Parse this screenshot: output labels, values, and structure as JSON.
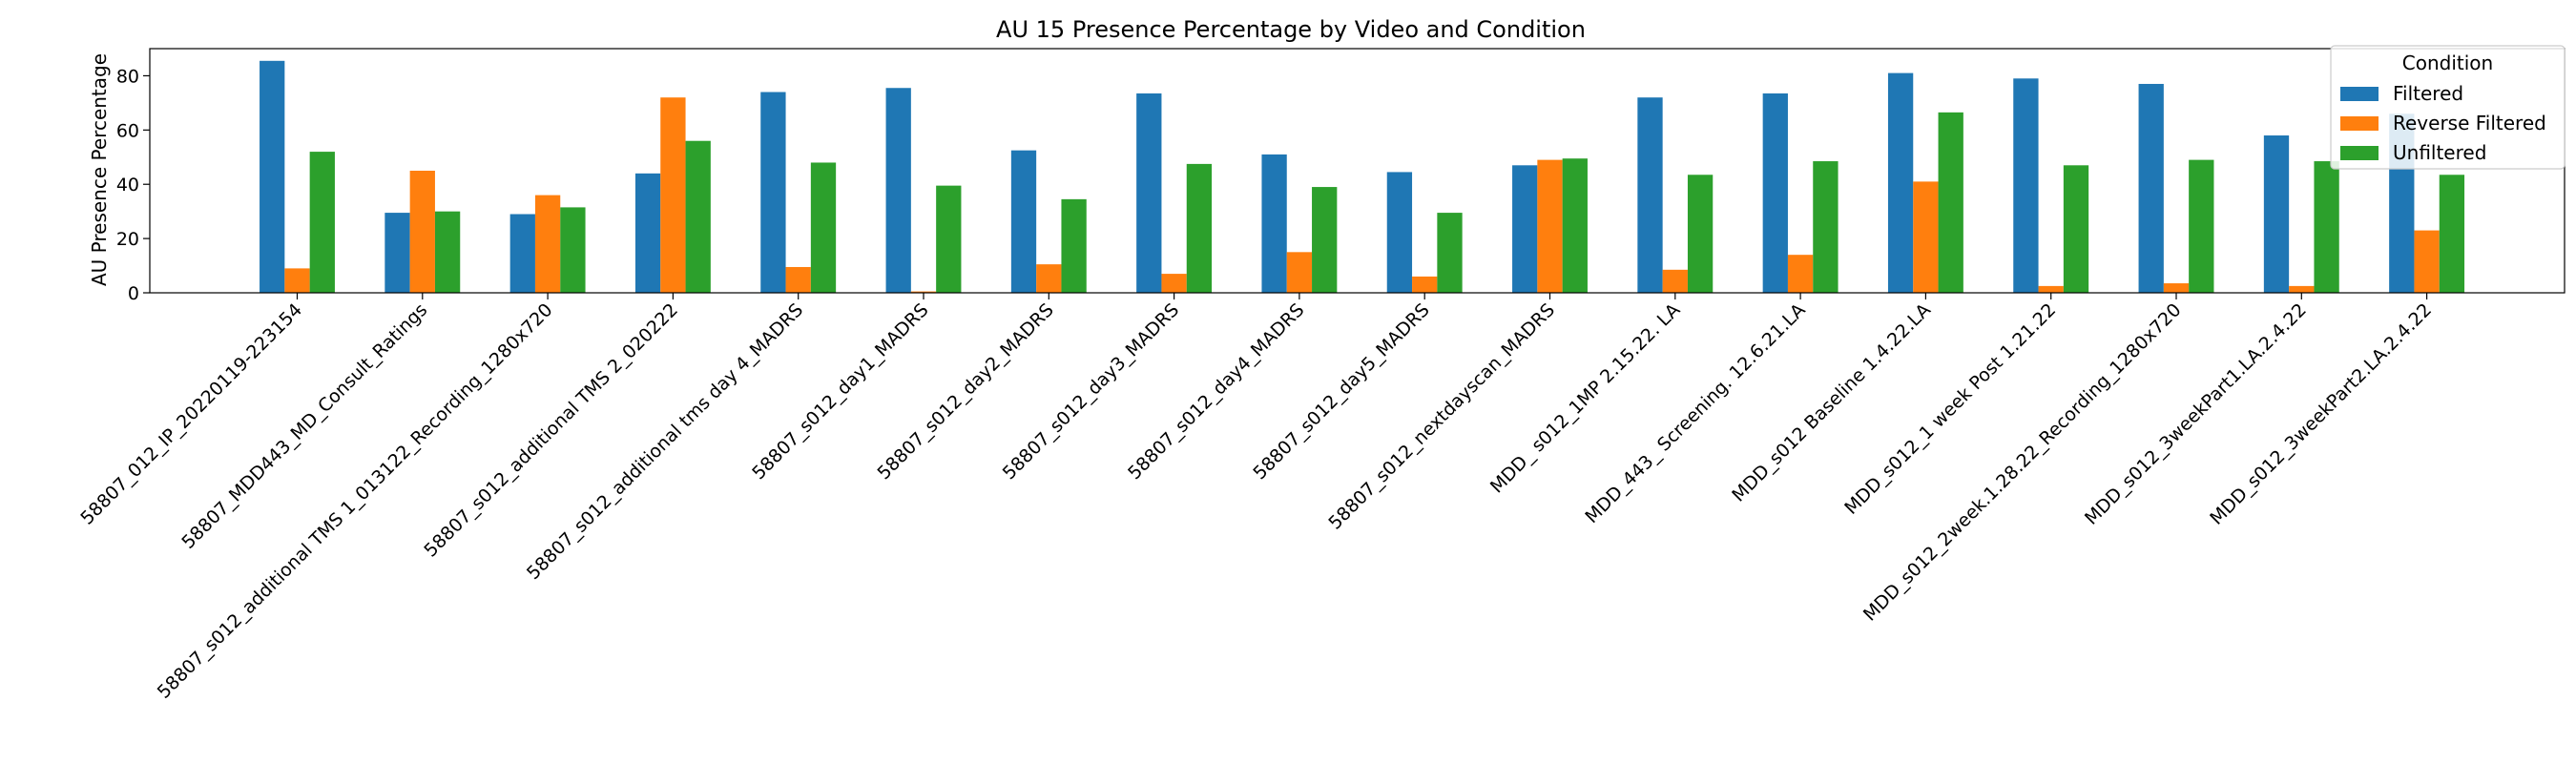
{
  "chart_data": {
    "type": "bar",
    "title": "AU 15 Presence Percentage by Video and Condition",
    "xlabel": "",
    "ylabel": "AU Presence Percentage",
    "ylim": [
      0,
      90
    ],
    "yticks": [
      0,
      20,
      40,
      60,
      80
    ],
    "grid": false,
    "legend": {
      "title": "Condition",
      "placement": "top-right"
    },
    "categories": [
      "58807_012_IP_20220119-223154",
      "58807_MDD443_MD_Consult_Ratings",
      "58807_s012_additional TMS 1_013122_Recording_1280x720",
      "58807_s012_additional TMS 2_020222",
      "58807_s012_additional tms day 4_MADRS",
      "58807_s012_day1_MADRS",
      "58807_s012_day2_MADRS",
      "58807_s012_day3_MADRS",
      "58807_s012_day4_MADRS",
      "58807_s012_day5_MADRS",
      "58807_s012_nextdayscan_MADRS",
      "MDD_ s012_1MP  2.15.22. LA",
      "MDD_443_ Screening. 12.6.21.LA",
      "MDD_s012 Baseline 1.4.22.LA",
      "MDD_s012_1 week Post 1.21.22",
      "MDD_s012_2week.1.28.22_Recording_1280x720",
      "MDD_s012_3weekPart1.LA.2.4.22",
      "MDD_s012_3weekPart2.LA.2.4.22"
    ],
    "series": [
      {
        "name": "Filtered",
        "color": "#1f77b4",
        "values": [
          85.5,
          29.5,
          29,
          44,
          74,
          75.5,
          52.5,
          73.5,
          51,
          44.5,
          47,
          72,
          73.5,
          81,
          79,
          77,
          58,
          66
        ]
      },
      {
        "name": "Reverse Filtered",
        "color": "#ff7f0e",
        "values": [
          9,
          45,
          36,
          72,
          9.5,
          0.5,
          10.5,
          7,
          15,
          6,
          49,
          8.5,
          14,
          41,
          2.5,
          3.5,
          2.5,
          23
        ]
      },
      {
        "name": "Unfiltered",
        "color": "#2ca02c",
        "values": [
          52,
          30,
          31.5,
          56,
          48,
          39.5,
          34.5,
          47.5,
          39,
          29.5,
          49.5,
          43.5,
          48.5,
          66.5,
          47,
          49,
          48.5,
          43.5
        ]
      }
    ]
  }
}
